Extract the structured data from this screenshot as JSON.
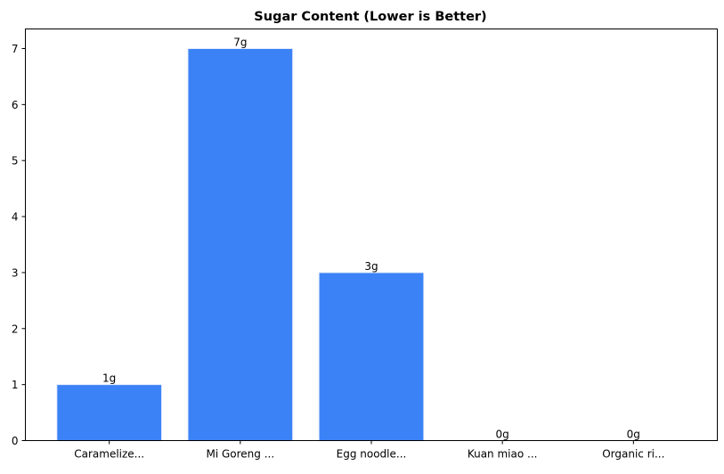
{
  "chart_data": {
    "type": "bar",
    "title": "Sugar Content (Lower is Better)",
    "xlabel": "",
    "ylabel": "",
    "categories": [
      "Caramelize...",
      "Mi Goreng ...",
      "Egg noodle...",
      "Kuan miao ...",
      "Organic ri..."
    ],
    "values": [
      1,
      7,
      3,
      0,
      0
    ],
    "data_labels": [
      "1g",
      "7g",
      "3g",
      "0g",
      "0g"
    ],
    "yticks": [
      0,
      1,
      2,
      3,
      4,
      5,
      6,
      7
    ],
    "ylim": [
      0,
      7.35
    ],
    "grid": false,
    "bar_color": "#3b82f6",
    "bar_edge_color": "#e5edfb"
  }
}
